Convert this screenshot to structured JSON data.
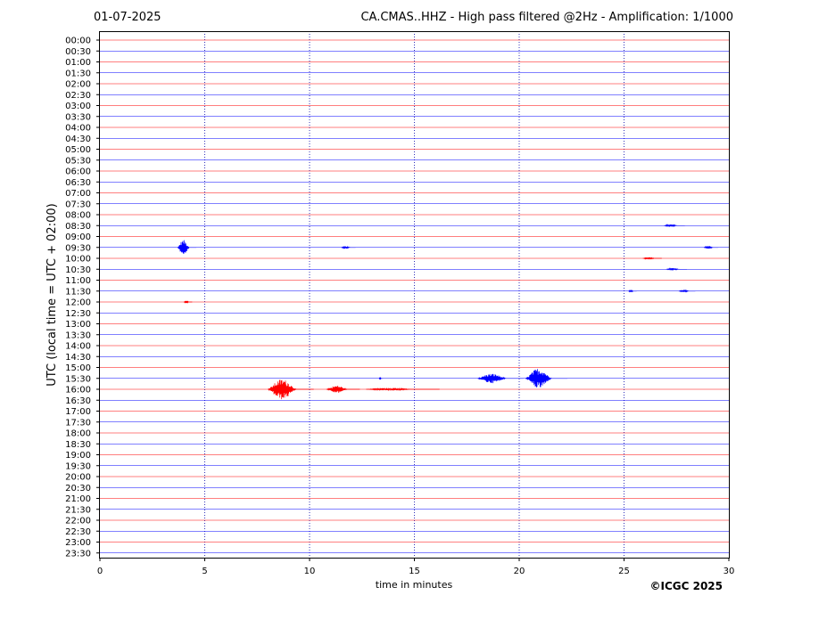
{
  "header": {
    "date": "01-07-2025",
    "title": "CA.CMAS..HHZ - High pass filtered @2Hz - Amplification: 1/1000"
  },
  "copyright": "©ICGC 2025",
  "chart_data": {
    "type": "line",
    "title": "CA.CMAS..HHZ - High pass filtered @2Hz - Amplification: 1/1000",
    "xlabel": "time in minutes",
    "ylabel": "UTC (local time = UTC + 02:00)",
    "xlim": [
      0,
      30
    ],
    "x_ticks": [
      0,
      5,
      10,
      15,
      20,
      25,
      30
    ],
    "y_ticks": [
      "00:00",
      "00:30",
      "01:00",
      "01:30",
      "02:00",
      "02:30",
      "03:00",
      "03:30",
      "04:00",
      "04:30",
      "05:00",
      "05:30",
      "06:00",
      "06:30",
      "07:00",
      "07:30",
      "08:00",
      "08:30",
      "09:00",
      "09:30",
      "10:00",
      "10:30",
      "11:00",
      "11:30",
      "12:00",
      "12:30",
      "13:00",
      "13:30",
      "14:00",
      "14:30",
      "15:00",
      "15:30",
      "16:00",
      "16:30",
      "17:00",
      "17:30",
      "18:00",
      "18:30",
      "19:00",
      "19:30",
      "20:00",
      "20:30",
      "21:00",
      "21:30",
      "22:00",
      "22:30",
      "23:00",
      "23:30"
    ],
    "grid": "vertical dotted lines at 5-minute intervals",
    "series_colors": [
      "#ff0000",
      "#0000ff"
    ],
    "events": [
      {
        "trace": "08:30",
        "start": 26.9,
        "end": 27.9,
        "amplitude": 0.12
      },
      {
        "trace": "09:30",
        "start": 3.7,
        "end": 4.6,
        "amplitude": 0.7
      },
      {
        "trace": "09:30",
        "start": 11.5,
        "end": 12.2,
        "amplitude": 0.12
      },
      {
        "trace": "09:30",
        "start": 28.8,
        "end": 29.5,
        "amplitude": 0.15
      },
      {
        "trace": "10:00",
        "start": 25.9,
        "end": 26.8,
        "amplitude": 0.1
      },
      {
        "trace": "10:30",
        "start": 27.0,
        "end": 28.0,
        "amplitude": 0.1
      },
      {
        "trace": "11:30",
        "start": 25.2,
        "end": 25.6,
        "amplitude": 0.1
      },
      {
        "trace": "11:30",
        "start": 27.6,
        "end": 28.4,
        "amplitude": 0.1
      },
      {
        "trace": "12:00",
        "start": 4.0,
        "end": 4.4,
        "amplitude": 0.12
      },
      {
        "trace": "15:30",
        "start": 13.3,
        "end": 13.5,
        "amplitude": 0.1
      },
      {
        "trace": "15:30",
        "start": 18.0,
        "end": 20.2,
        "amplitude": 0.45
      },
      {
        "trace": "15:30",
        "start": 20.3,
        "end": 22.3,
        "amplitude": 0.95
      },
      {
        "trace": "16:00",
        "start": 8.0,
        "end": 10.2,
        "amplitude": 0.95
      },
      {
        "trace": "16:00",
        "start": 10.8,
        "end": 12.4,
        "amplitude": 0.35
      },
      {
        "trace": "16:00",
        "start": 12.7,
        "end": 16.2,
        "amplitude": 0.12
      }
    ]
  }
}
